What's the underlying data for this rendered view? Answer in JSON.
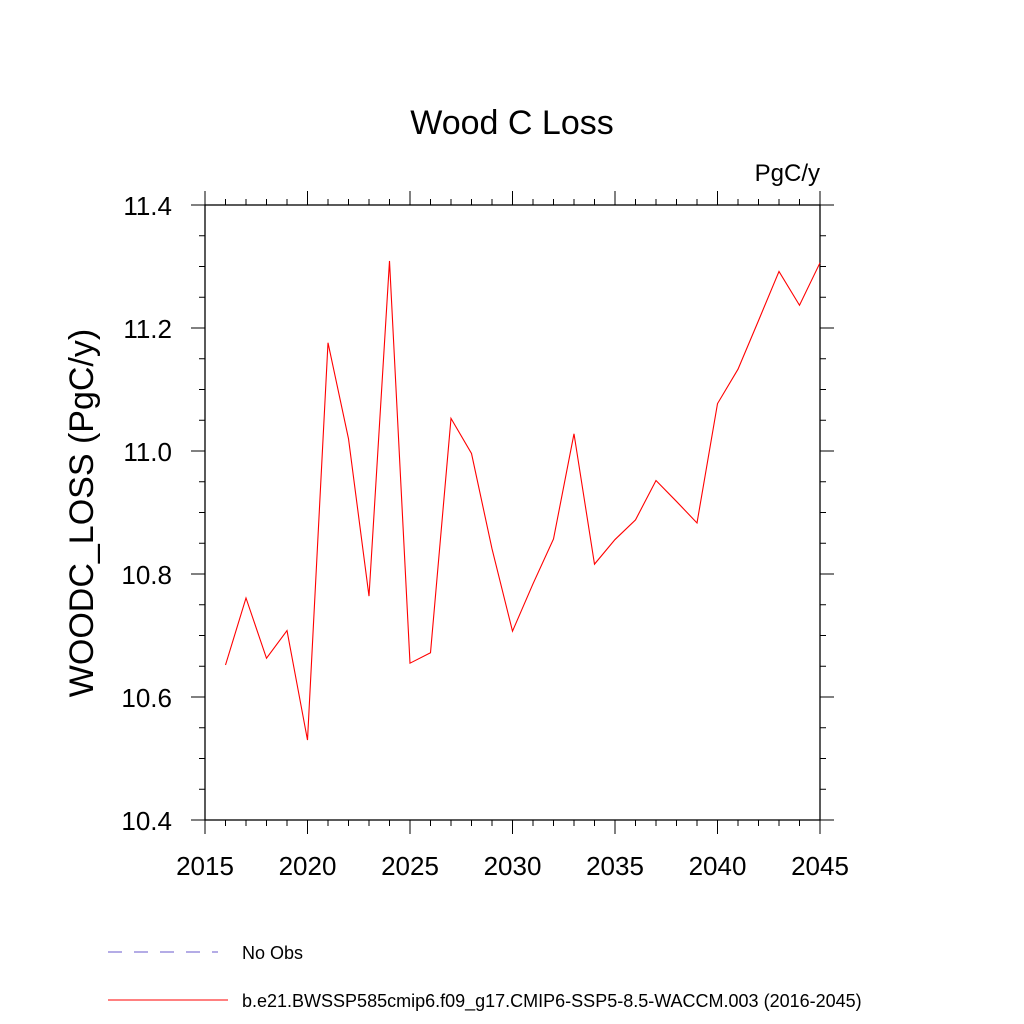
{
  "chart_data": {
    "type": "line",
    "title": "Wood C Loss",
    "units": "PgC/y",
    "xlabel": "",
    "ylabel": "WOODC_LOSS  (PgC/y)",
    "xlim": [
      2015,
      2045
    ],
    "ylim": [
      10.4,
      11.4
    ],
    "x_ticks": [
      2015,
      2020,
      2025,
      2030,
      2035,
      2040,
      2045
    ],
    "y_ticks": [
      10.4,
      10.6,
      10.8,
      11.0,
      11.2,
      11.4
    ],
    "y_tick_labels": [
      "10.4",
      "10.6",
      "10.8",
      "11.0",
      "11.2",
      "11.4"
    ],
    "grid": false,
    "series": [
      {
        "name": "No Obs",
        "color": "#6a5acd",
        "dashed": true,
        "x": [],
        "values": []
      },
      {
        "name": "b.e21.BWSSP585cmip6.f09_g17.CMIP6-SSP5-8.5-WACCM.003 (2016-2045)",
        "color": "#ff0000",
        "dashed": false,
        "x": [
          2016,
          2017,
          2018,
          2019,
          2020,
          2021,
          2022,
          2023,
          2024,
          2025,
          2026,
          2027,
          2028,
          2029,
          2030,
          2031,
          2032,
          2033,
          2034,
          2035,
          2036,
          2037,
          2038,
          2039,
          2040,
          2041,
          2042,
          2043,
          2044,
          2045
        ],
        "values": [
          10.652,
          10.761,
          10.663,
          10.708,
          10.53,
          11.176,
          11.02,
          10.764,
          11.309,
          10.655,
          10.672,
          11.053,
          10.996,
          10.841,
          10.707,
          10.784,
          10.857,
          11.028,
          10.816,
          10.856,
          10.888,
          10.952,
          10.918,
          10.883,
          11.077,
          11.133,
          11.212,
          11.292,
          11.237,
          11.306
        ]
      }
    ],
    "legend_position": "bottom"
  }
}
